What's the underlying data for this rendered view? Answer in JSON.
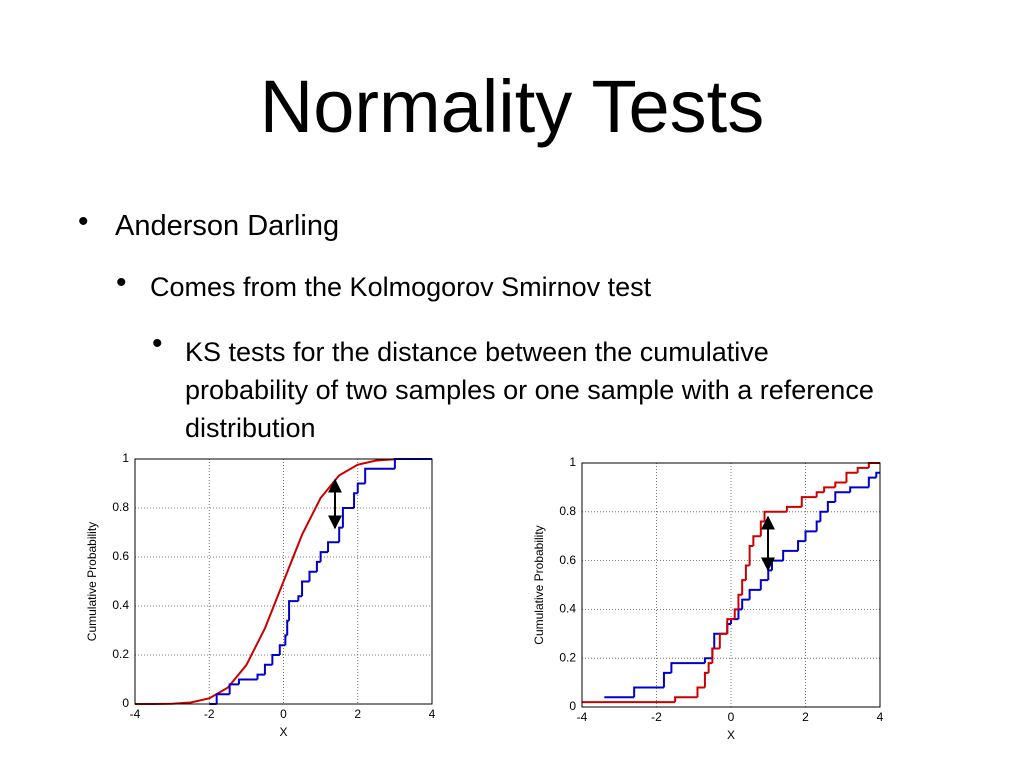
{
  "title": "Normality Tests",
  "bullets": [
    "Anderson Darling",
    "Comes from the Kolmogorov Smirnov test",
    "KS tests for the distance between the cumulative probability of two samples or one sample with a reference distribution"
  ],
  "chart_data": [
    {
      "type": "line",
      "xlabel": "X",
      "ylabel": "Cumulative Probability",
      "xlim": [
        -4,
        4
      ],
      "ylim": [
        0,
        1
      ],
      "xticks": [
        -4,
        -2,
        0,
        2,
        4
      ],
      "yticks": [
        0,
        0.2,
        0.4,
        0.6,
        0.8,
        1
      ],
      "grid": true,
      "series": [
        {
          "color": "#cc0000",
          "step": false,
          "x": [
            -4,
            -3.5,
            -3,
            -2.5,
            -2,
            -1.5,
            -1,
            -0.5,
            0,
            0.5,
            1,
            1.5,
            2,
            2.5,
            3
          ],
          "values": [
            0,
            0.0002,
            0.001,
            0.006,
            0.023,
            0.067,
            0.159,
            0.309,
            0.5,
            0.691,
            0.841,
            0.933,
            0.977,
            0.994,
            0.999
          ]
        },
        {
          "color": "#0000cc",
          "step": true,
          "x": [
            -2,
            -1.8,
            -1.45,
            -1.2,
            -0.7,
            -0.5,
            -0.3,
            -0.1,
            0.05,
            0.1,
            0.15,
            0.4,
            0.5,
            0.7,
            0.9,
            1.0,
            1.2,
            1.5,
            1.6,
            1.9,
            2.0,
            2.2,
            3.0
          ],
          "values": [
            0,
            0.04,
            0.08,
            0.1,
            0.12,
            0.16,
            0.2,
            0.24,
            0.28,
            0.34,
            0.42,
            0.44,
            0.5,
            0.54,
            0.58,
            0.62,
            0.66,
            0.72,
            0.8,
            0.86,
            0.9,
            0.96,
            1
          ]
        }
      ]
    },
    {
      "type": "line",
      "xlabel": "X",
      "ylabel": "Cumulative Probability",
      "xlim": [
        -4,
        4
      ],
      "ylim": [
        0,
        1
      ],
      "xticks": [
        -4,
        -2,
        0,
        2,
        4
      ],
      "yticks": [
        0,
        0.2,
        0.4,
        0.6,
        0.8,
        1
      ],
      "grid": true,
      "series": [
        {
          "color": "#0000cc",
          "step": true,
          "x": [
            -3.4,
            -2.6,
            -1.8,
            -1.6,
            -0.7,
            -0.5,
            -0.45,
            -0.1,
            0,
            0.2,
            0.3,
            0.5,
            0.8,
            1.0,
            1.1,
            1.4,
            1.8,
            2.0,
            2.3,
            2.4,
            2.6,
            2.8,
            3.2,
            3.7,
            3.9
          ],
          "values": [
            0.04,
            0.08,
            0.14,
            0.18,
            0.2,
            0.24,
            0.3,
            0.34,
            0.36,
            0.4,
            0.44,
            0.48,
            0.52,
            0.56,
            0.6,
            0.64,
            0.68,
            0.72,
            0.76,
            0.8,
            0.84,
            0.88,
            0.9,
            0.94,
            0.96
          ]
        },
        {
          "color": "#cc0000",
          "step": true,
          "x": [
            -4,
            -1.5,
            -0.9,
            -0.7,
            -0.6,
            -0.5,
            -0.3,
            -0.1,
            0.1,
            0.2,
            0.3,
            0.4,
            0.5,
            0.6,
            0.8,
            0.9,
            1.5,
            1.9,
            2.3,
            2.5,
            2.8,
            3.1,
            3.4,
            3.7
          ],
          "values": [
            0.02,
            0.04,
            0.08,
            0.14,
            0.18,
            0.24,
            0.3,
            0.36,
            0.4,
            0.46,
            0.52,
            0.58,
            0.66,
            0.7,
            0.76,
            0.8,
            0.82,
            0.86,
            0.88,
            0.9,
            0.92,
            0.96,
            0.98,
            1
          ]
        }
      ]
    }
  ]
}
